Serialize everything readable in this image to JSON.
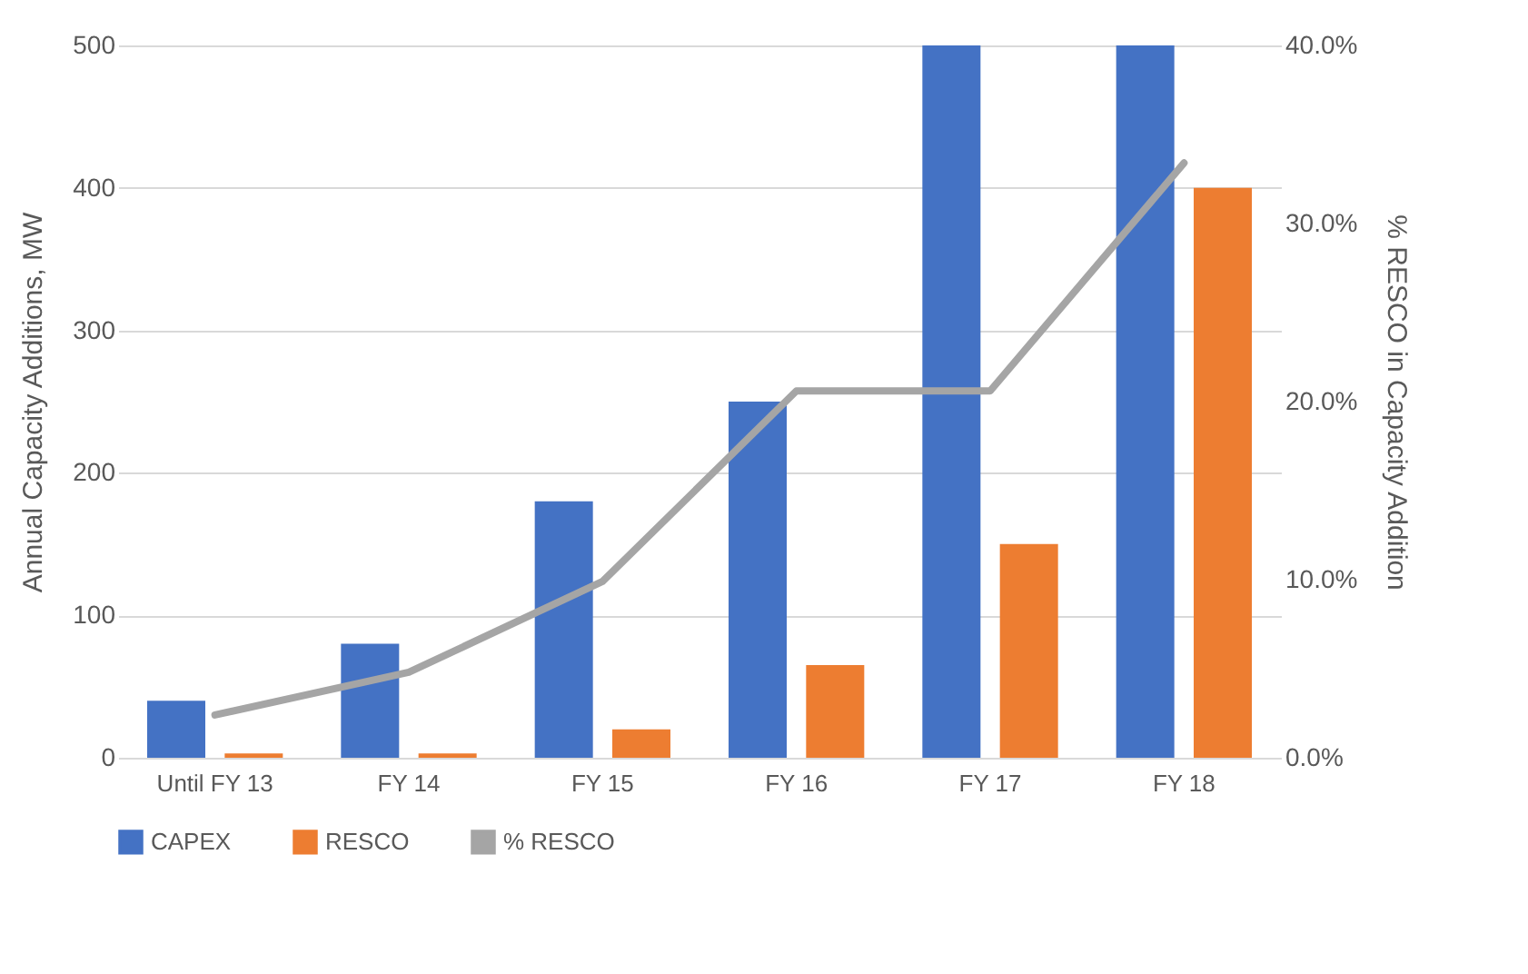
{
  "chart_data": {
    "type": "bar",
    "categories": [
      "Until FY 13",
      "FY 14",
      "FY 15",
      "FY 16",
      "FY 17",
      "FY 18"
    ],
    "ylabel": "Annual Capacity Additions, MW",
    "y2label": "% RESCO in Capacity Addition",
    "series": [
      {
        "name": "CAPEX",
        "color": "#4472c4",
        "values": [
          40,
          80,
          180,
          250,
          500,
          500
        ]
      },
      {
        "name": "RESCO",
        "color": "#ed7d31",
        "values": [
          3,
          3,
          20,
          65,
          150,
          400
        ]
      },
      {
        "name": "% RESCO",
        "type": "line",
        "axis": "y2",
        "color": "#a5a5a5",
        "values": [
          2.4,
          4.8,
          9.9,
          20.6,
          20.6,
          33.4
        ]
      }
    ],
    "ylim": [
      0,
      500
    ],
    "yticks": [
      0,
      100,
      200,
      300,
      400,
      500
    ],
    "y2lim": [
      0,
      40
    ],
    "y2ticks": [
      {
        "value": 0,
        "label": "0.0%"
      },
      {
        "value": 10,
        "label": "10.0%"
      },
      {
        "value": 20,
        "label": "20.0%"
      },
      {
        "value": 30,
        "label": "30.0%"
      },
      {
        "value": 40,
        "label": "40.0%"
      }
    ],
    "grid": "y",
    "legend": "bottom",
    "marker": "none",
    "line_style": "solid"
  }
}
